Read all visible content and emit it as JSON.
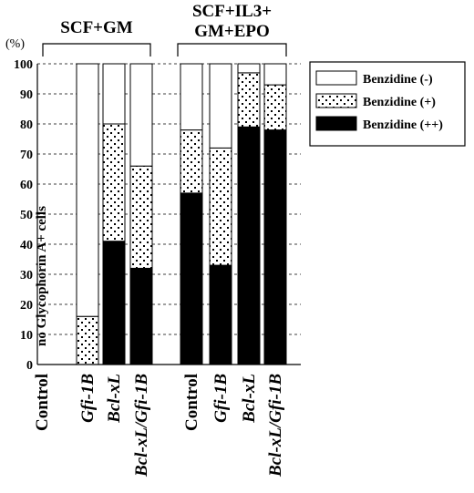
{
  "chart_data": {
    "type": "bar",
    "stacked": true,
    "y_unit_label": "(%)",
    "ylim": [
      0,
      100
    ],
    "y_ticks": [
      0,
      10,
      20,
      30,
      40,
      50,
      60,
      70,
      80,
      90,
      100
    ],
    "grid": "horizontal dashed",
    "groups": [
      {
        "label": "SCF+GM",
        "label_lines": [
          "SCF+GM"
        ],
        "categories": [
          0,
          1,
          2,
          3
        ]
      },
      {
        "label": "SCF+IL3+ GM+EPO",
        "label_lines": [
          "SCF+IL3+",
          "GM+EPO"
        ],
        "categories": [
          4,
          5,
          6,
          7
        ]
      }
    ],
    "categories": [
      {
        "label": "Control",
        "italic": false
      },
      {
        "label": "Gfi-1B",
        "italic": true
      },
      {
        "label": "Bcl-xL",
        "italic": true
      },
      {
        "label": "Bcl-xL/Gfi-1B",
        "italic": true
      },
      {
        "label": "Control",
        "italic": false
      },
      {
        "label": "Gfi-1B",
        "italic": true
      },
      {
        "label": "Bcl-xL",
        "italic": true
      },
      {
        "label": "Bcl-xL/Gfi-1B",
        "italic": true
      }
    ],
    "series": [
      {
        "name": "Benzidine (++)",
        "pattern": "solid-black",
        "values": [
          null,
          0,
          41,
          32,
          57,
          33,
          79,
          78
        ]
      },
      {
        "name": "Benzidine (+)",
        "pattern": "dotted",
        "values": [
          null,
          16,
          39,
          34,
          21,
          39,
          18,
          15
        ]
      },
      {
        "name": "Benzidine (-)",
        "pattern": "white",
        "values": [
          null,
          84,
          20,
          34,
          22,
          28,
          3,
          7
        ]
      }
    ],
    "legend_order": [
      "Benzidine (-)",
      "Benzidine (+)",
      "Benzidine (++)"
    ],
    "legend_position": "top-right",
    "annotations": [
      {
        "category": 0,
        "text": "no Glycophorin A+ cells"
      }
    ]
  }
}
